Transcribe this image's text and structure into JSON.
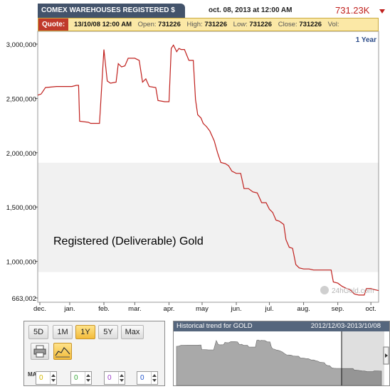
{
  "header": {
    "title": "COMEX WAREHOUSES REGISTERED $",
    "datetime": "oct. 08, 2013 at 12:00 AM",
    "value": "731.23K"
  },
  "quote": {
    "label": "Quote:",
    "date": "13/10/08 12:00 AM",
    "open_label": "Open:",
    "open": "731226",
    "high_label": "High:",
    "high": "731226",
    "low_label": "Low:",
    "low": "731226",
    "close_label": "Close:",
    "close": "731226",
    "vol_label": "Vol:",
    "vol": ""
  },
  "period_label": "1 Year",
  "watermark": "24hGold.com",
  "controls": {
    "ranges": [
      {
        "label": "5D",
        "active": false
      },
      {
        "label": "1M",
        "active": false
      },
      {
        "label": "1Y",
        "active": true
      },
      {
        "label": "5Y",
        "active": false
      },
      {
        "label": "Max",
        "active": false
      }
    ],
    "ma_label": "MA",
    "ma_values": [
      "0",
      "0",
      "0",
      "0"
    ],
    "ma_colors": [
      "#d4b800",
      "#3aa83a",
      "#9b3dc8",
      "#2255cc"
    ]
  },
  "historical": {
    "title": "Historical trend for GOLD",
    "range": "2012/12/03-2013/10/08"
  },
  "colors": {
    "line": "#c0201d",
    "band": "#f1f1f1",
    "quote_bg": "#fbe8a6",
    "accent": "#c0392b"
  },
  "chart_data": {
    "type": "line",
    "annotation": "Registered (Deliverable) Gold",
    "y_ticks": [
      {
        "value": 3000000,
        "label": "3,000,000"
      },
      {
        "value": 2500000,
        "label": "2,500,000"
      },
      {
        "value": 2000000,
        "label": "2,000,000"
      },
      {
        "value": 1500000,
        "label": "1,500,000"
      },
      {
        "value": 1000000,
        "label": "1,000,000"
      },
      {
        "value": 663002,
        "label": "663,002"
      }
    ],
    "ylim": [
      663002,
      3000000
    ],
    "x_labels": [
      {
        "label": "dec.",
        "date": "2012-12-01"
      },
      {
        "label": "jan.",
        "date": "2013-01-01"
      },
      {
        "label": "feb.",
        "date": "2013-02-01"
      },
      {
        "label": "mar.",
        "date": "2013-03-01"
      },
      {
        "label": "apr.",
        "date": "2013-04-01"
      },
      {
        "label": "may",
        "date": "2013-05-01"
      },
      {
        "label": "jun.",
        "date": "2013-06-01"
      },
      {
        "label": "jul.",
        "date": "2013-07-01"
      },
      {
        "label": "aug.",
        "date": "2013-08-01"
      },
      {
        "label": "sep.",
        "date": "2013-09-01"
      },
      {
        "label": "oct.",
        "date": "2013-10-01"
      }
    ],
    "xlim": [
      "2012-12-03",
      "2013-10-08"
    ],
    "grid": false,
    "series": [
      {
        "points": [
          [
            "2012-12-03",
            2530000
          ],
          [
            "2012-12-06",
            2540000
          ],
          [
            "2012-12-10",
            2600000
          ],
          [
            "2012-12-20",
            2610000
          ],
          [
            "2013-01-03",
            2610000
          ],
          [
            "2013-01-07",
            2620000
          ],
          [
            "2013-01-09",
            2620000
          ],
          [
            "2013-01-10",
            2290000
          ],
          [
            "2013-01-18",
            2280000
          ],
          [
            "2013-01-20",
            2270000
          ],
          [
            "2013-01-28",
            2270000
          ],
          [
            "2013-02-01",
            2950000
          ],
          [
            "2013-02-04",
            2660000
          ],
          [
            "2013-02-07",
            2640000
          ],
          [
            "2013-02-12",
            2650000
          ],
          [
            "2013-02-14",
            2820000
          ],
          [
            "2013-02-17",
            2790000
          ],
          [
            "2013-02-20",
            2800000
          ],
          [
            "2013-02-23",
            2870000
          ],
          [
            "2013-03-01",
            2870000
          ],
          [
            "2013-03-05",
            2850000
          ],
          [
            "2013-03-08",
            2650000
          ],
          [
            "2013-03-11",
            2680000
          ],
          [
            "2013-03-14",
            2610000
          ],
          [
            "2013-03-20",
            2600000
          ],
          [
            "2013-03-22",
            2480000
          ],
          [
            "2013-03-28",
            2470000
          ],
          [
            "2013-04-01",
            2470000
          ],
          [
            "2013-04-03",
            2960000
          ],
          [
            "2013-04-05",
            2990000
          ],
          [
            "2013-04-08",
            2930000
          ],
          [
            "2013-04-10",
            2960000
          ],
          [
            "2013-04-12",
            2950000
          ],
          [
            "2013-04-15",
            2950000
          ],
          [
            "2013-04-19",
            2850000
          ],
          [
            "2013-04-23",
            2850000
          ],
          [
            "2013-04-25",
            2490000
          ],
          [
            "2013-04-27",
            2350000
          ],
          [
            "2013-04-30",
            2320000
          ],
          [
            "2013-05-02",
            2270000
          ],
          [
            "2013-05-05",
            2240000
          ],
          [
            "2013-05-08",
            2200000
          ],
          [
            "2013-05-12",
            2110000
          ],
          [
            "2013-05-15",
            2000000
          ],
          [
            "2013-05-18",
            1910000
          ],
          [
            "2013-05-22",
            1900000
          ],
          [
            "2013-05-25",
            1880000
          ],
          [
            "2013-05-28",
            1830000
          ],
          [
            "2013-06-01",
            1810000
          ],
          [
            "2013-06-05",
            1810000
          ],
          [
            "2013-06-08",
            1670000
          ],
          [
            "2013-06-12",
            1670000
          ],
          [
            "2013-06-16",
            1640000
          ],
          [
            "2013-06-20",
            1630000
          ],
          [
            "2013-06-24",
            1540000
          ],
          [
            "2013-06-28",
            1540000
          ],
          [
            "2013-07-01",
            1480000
          ],
          [
            "2013-07-04",
            1450000
          ],
          [
            "2013-07-07",
            1380000
          ],
          [
            "2013-07-10",
            1370000
          ],
          [
            "2013-07-14",
            1340000
          ],
          [
            "2013-07-16",
            1200000
          ],
          [
            "2013-07-19",
            1130000
          ],
          [
            "2013-07-22",
            1120000
          ],
          [
            "2013-07-25",
            970000
          ],
          [
            "2013-07-28",
            940000
          ],
          [
            "2013-08-01",
            930000
          ],
          [
            "2013-08-06",
            930000
          ],
          [
            "2013-08-10",
            920000
          ],
          [
            "2013-08-15",
            920000
          ],
          [
            "2013-08-20",
            920000
          ],
          [
            "2013-08-26",
            920000
          ],
          [
            "2013-08-28",
            810000
          ],
          [
            "2013-09-01",
            800000
          ],
          [
            "2013-09-05",
            770000
          ],
          [
            "2013-09-09",
            750000
          ],
          [
            "2013-09-12",
            740000
          ],
          [
            "2013-09-16",
            700000
          ],
          [
            "2013-09-20",
            690000
          ],
          [
            "2013-09-25",
            690000
          ],
          [
            "2013-09-27",
            750000
          ],
          [
            "2013-10-01",
            750000
          ],
          [
            "2013-10-04",
            740000
          ],
          [
            "2013-10-08",
            731226
          ]
        ]
      }
    ]
  }
}
